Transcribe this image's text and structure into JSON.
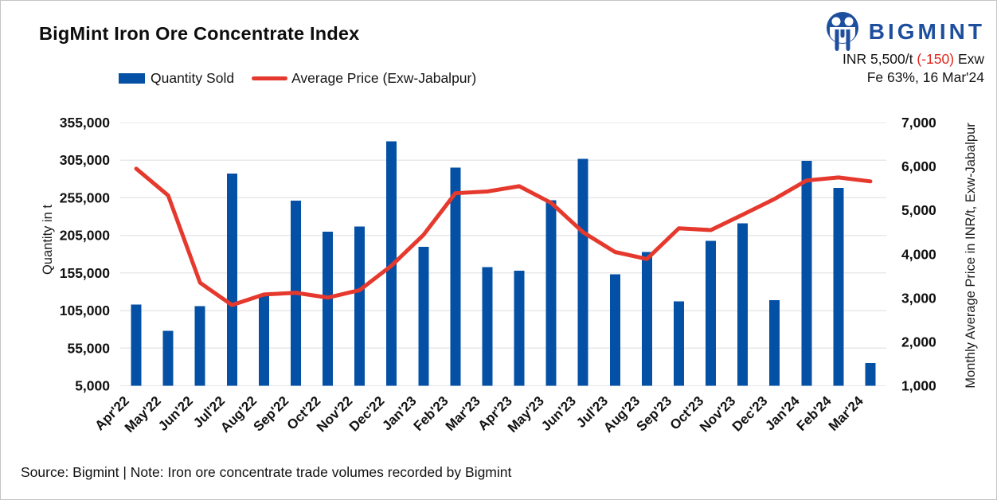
{
  "header": {
    "title": "BigMint Iron Ore Concentrate Index",
    "brand_name": "BIGMINT",
    "price_ticker": {
      "main": "INR 5,500/t",
      "change": "(-150)",
      "suffix": "Exw",
      "detail": "Fe 63%, 16 Mar'24"
    }
  },
  "legend": [
    {
      "label": "Quantity Sold",
      "type": "bar",
      "color": "#0450a4"
    },
    {
      "label": "Average Price (Exw-Jabalpur)",
      "type": "line",
      "color": "#e6392e"
    }
  ],
  "chart_data": {
    "type": "combo",
    "categories": [
      "Apr'22",
      "May'22",
      "Jun'22",
      "Jul'22",
      "Aug'22",
      "Sep'22",
      "Oct'22",
      "Nov'22",
      "Dec'22",
      "Jan'23",
      "Feb'23",
      "Mar'23",
      "Apr'23",
      "May'23",
      "Jun'23",
      "Jul'23",
      "Aug'23",
      "Sep'23",
      "Oct'23",
      "Nov'23",
      "Dec'23",
      "Jan'24",
      "Feb'24",
      "Mar'24"
    ],
    "series": [
      {
        "name": "Quantity Sold",
        "type": "bar",
        "axis": "left",
        "color": "#0450a4",
        "values": [
          113000,
          78000,
          111000,
          287000,
          127000,
          251000,
          210000,
          217000,
          330000,
          190000,
          295000,
          163000,
          158000,
          252000,
          307000,
          153000,
          183000,
          117000,
          198000,
          221000,
          119000,
          304000,
          268000,
          35000
        ]
      },
      {
        "name": "Average Price (Exw-Jabalpur)",
        "type": "line",
        "axis": "right",
        "color": "#e6392e",
        "values": [
          5950,
          5340,
          3350,
          2840,
          3080,
          3120,
          3010,
          3180,
          3740,
          4440,
          5390,
          5430,
          5550,
          5170,
          4500,
          4050,
          3890,
          4590,
          4550,
          4900,
          5260,
          5680,
          5750,
          5660
        ]
      }
    ],
    "left_axis": {
      "title": "Quantity in t",
      "min": 5000,
      "max": 355000,
      "tick_step": 50000,
      "ticks": [
        "5,000",
        "55,000",
        "105,000",
        "155,000",
        "205,000",
        "255,000",
        "305,000",
        "355,000"
      ]
    },
    "right_axis": {
      "title": "Monthly Average Price in INR/t, Exw-Jabalpur",
      "min": 1000,
      "max": 7000,
      "tick_step": 1000,
      "ticks": [
        "1,000",
        "2,000",
        "3,000",
        "4,000",
        "5,000",
        "6,000",
        "7,000"
      ]
    },
    "grid": true,
    "legend_position": "top-left"
  },
  "footer": {
    "text": "Source: Bigmint | Note: Iron ore concentrate trade volumes recorded by Bigmint"
  },
  "colors": {
    "bar_blue": "#0450a4",
    "line_red": "#e6392e",
    "brand_blue": "#1d4f9e",
    "negative_red": "#e0261a",
    "gridline_gray": "#e8e8ea",
    "text_dark": "#111111"
  }
}
